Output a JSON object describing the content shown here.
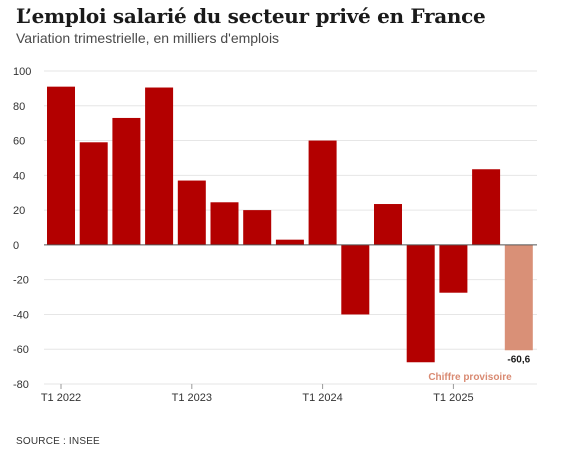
{
  "header": {
    "title": "L’emploi salarié du secteur privé en France",
    "subtitle": "Variation trimestrielle, en milliers d'emplois"
  },
  "footer": {
    "source": "SOURCE : INSEE"
  },
  "colors": {
    "bar": "#b30000",
    "provisional_bar": "#d99077",
    "provisional_label": "#d98a72",
    "value_label": "#1a1a1a",
    "grid": "#e6e6e6",
    "zero_line": "#555555"
  },
  "chart_data": {
    "type": "bar",
    "ylim": [
      -80,
      100
    ],
    "yticks": [
      100,
      80,
      60,
      40,
      20,
      0,
      -20,
      -40,
      -60,
      -80
    ],
    "grid": true,
    "categories": [
      "T1 2022",
      "T2 2022",
      "T3 2022",
      "T4 2022",
      "T1 2023",
      "T2 2023",
      "T3 2023",
      "T4 2023",
      "T1 2024",
      "T2 2024",
      "T3 2024",
      "T4 2024",
      "T1 2025",
      "T2 2025",
      "T3 2025"
    ],
    "xtick_labels": [
      "T1 2022",
      "T1 2023",
      "T1 2024",
      "T1 2025"
    ],
    "xtick_indices": [
      0,
      4,
      8,
      12
    ],
    "values": [
      91,
      59,
      73,
      90.5,
      37,
      24.5,
      20,
      3,
      60,
      -40,
      23.5,
      -67.5,
      -27.5,
      43.5,
      -60.6
    ],
    "provisional_index": 14,
    "value_label": "-60,6",
    "annotation": "Chiffre provisoire"
  }
}
